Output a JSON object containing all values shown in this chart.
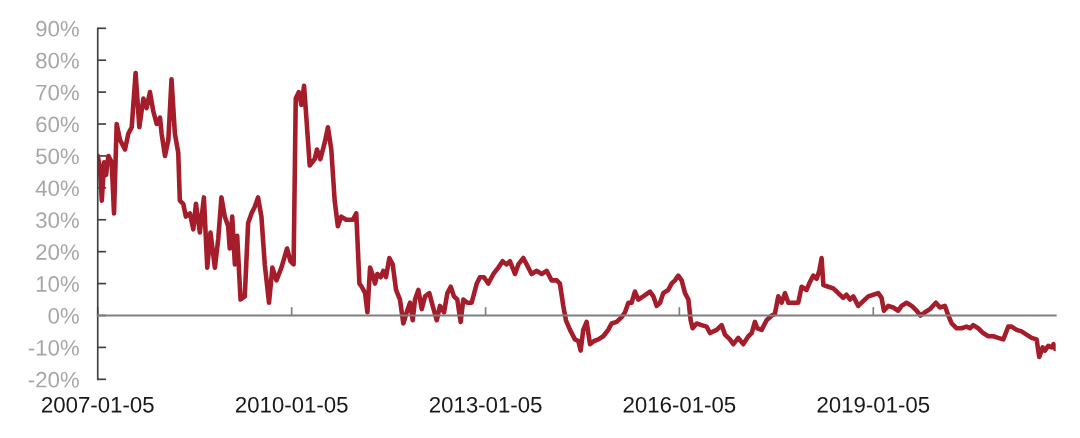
{
  "chart_data": {
    "type": "line",
    "x": [
      "2007-01-05",
      "2007-01-18",
      "2007-01-28",
      "2007-02-10",
      "2007-02-21",
      "2007-03-06",
      "2007-03-25",
      "2007-04-07",
      "2007-04-22",
      "2007-05-11",
      "2007-06-08",
      "2007-06-27",
      "2007-07-16",
      "2007-08-07",
      "2007-08-28",
      "2007-09-20",
      "2007-10-08",
      "2007-10-27",
      "2007-11-15",
      "2007-12-04",
      "2007-12-23",
      "2008-01-01",
      "2008-01-20",
      "2008-02-08",
      "2008-02-26",
      "2008-03-16",
      "2008-04-04",
      "2008-04-13",
      "2008-05-02",
      "2008-05-17",
      "2008-06-09",
      "2008-06-28",
      "2008-07-13",
      "2008-08-04",
      "2008-08-27",
      "2008-09-15",
      "2008-10-03",
      "2008-10-28",
      "2008-11-16",
      "2008-12-04",
      "2008-12-23",
      "2009-01-11",
      "2009-01-20",
      "2009-02-03",
      "2009-02-18",
      "2009-03-03",
      "2009-03-22",
      "2009-04-15",
      "2009-05-04",
      "2009-05-23",
      "2009-06-10",
      "2009-06-29",
      "2009-07-18",
      "2009-08-06",
      "2009-08-30",
      "2009-09-18",
      "2009-10-11",
      "2009-11-08",
      "2009-12-10",
      "2009-12-29",
      "2010-01-16",
      "2010-01-28",
      "2010-02-14",
      "2010-03-01",
      "2010-03-16",
      "2010-03-29",
      "2010-04-17",
      "2010-05-15",
      "2010-05-28",
      "2010-06-16",
      "2010-07-10",
      "2010-07-29",
      "2010-08-17",
      "2010-09-05",
      "2010-09-23",
      "2010-10-12",
      "2010-11-09",
      "2010-12-17",
      "2011-01-05",
      "2011-01-23",
      "2011-02-05",
      "2011-02-24",
      "2011-03-09",
      "2011-03-24",
      "2011-04-06",
      "2011-04-21",
      "2011-05-04",
      "2011-05-23",
      "2011-06-07",
      "2011-06-22",
      "2011-07-11",
      "2011-07-30",
      "2011-08-18",
      "2011-09-09",
      "2011-09-28",
      "2011-10-17",
      "2011-11-05",
      "2011-11-20",
      "2011-12-03",
      "2011-12-22",
      "2012-01-10",
      "2012-01-29",
      "2012-02-22",
      "2012-03-12",
      "2012-04-04",
      "2012-04-22",
      "2012-05-15",
      "2012-06-03",
      "2012-06-22",
      "2012-07-10",
      "2012-07-29",
      "2012-08-17",
      "2012-09-01",
      "2012-09-24",
      "2012-10-18",
      "2012-11-16",
      "2012-12-04",
      "2012-12-27",
      "2013-01-20",
      "2013-02-18",
      "2013-03-18",
      "2013-04-11",
      "2013-05-04",
      "2013-05-23",
      "2013-06-20",
      "2013-07-09",
      "2013-08-06",
      "2013-08-25",
      "2013-09-22",
      "2013-10-21",
      "2013-11-18",
      "2013-12-16",
      "2014-01-13",
      "2014-02-11",
      "2014-03-01",
      "2014-03-20",
      "2014-04-04",
      "2014-04-27",
      "2014-05-25",
      "2014-06-13",
      "2014-06-26",
      "2014-07-11",
      "2014-07-30",
      "2014-08-18",
      "2014-09-10",
      "2014-10-04",
      "2014-11-01",
      "2014-11-29",
      "2014-12-18",
      "2015-01-16",
      "2015-02-13",
      "2015-03-04",
      "2015-03-23",
      "2015-04-10",
      "2015-04-29",
      "2015-05-18",
      "2015-06-15",
      "2015-07-23",
      "2015-08-11",
      "2015-08-30",
      "2015-09-18",
      "2015-10-06",
      "2015-11-03",
      "2015-11-22",
      "2015-12-11",
      "2015-12-30",
      "2016-01-18",
      "2016-02-06",
      "2016-02-25",
      "2016-03-09",
      "2016-03-20",
      "2016-04-12",
      "2016-05-10",
      "2016-06-07",
      "2016-06-26",
      "2016-08-03",
      "2016-08-31",
      "2016-09-19",
      "2016-10-17",
      "2016-11-05",
      "2016-12-03",
      "2016-12-31",
      "2017-01-29",
      "2017-02-17",
      "2017-03-07",
      "2017-03-20",
      "2017-04-14",
      "2017-05-12",
      "2017-06-10",
      "2017-06-28",
      "2017-07-17",
      "2017-08-05",
      "2017-08-24",
      "2017-09-12",
      "2017-11-07",
      "2017-11-26",
      "2017-12-24",
      "2018-01-12",
      "2018-01-31",
      "2018-02-19",
      "2018-03-06",
      "2018-03-19",
      "2018-03-29",
      "2018-04-26",
      "2018-05-24",
      "2018-06-21",
      "2018-07-19",
      "2018-08-07",
      "2018-08-26",
      "2018-09-14",
      "2018-10-12",
      "2018-11-09",
      "2018-12-08",
      "2019-01-05",
      "2019-02-02",
      "2019-02-21",
      "2019-03-06",
      "2019-03-31",
      "2019-04-28",
      "2019-05-26",
      "2019-06-14",
      "2019-07-12",
      "2019-08-10",
      "2019-09-07",
      "2019-09-29",
      "2019-10-24",
      "2019-11-21",
      "2019-12-25",
      "2020-01-17",
      "2020-02-14",
      "2020-03-04",
      "2020-03-23",
      "2020-04-20",
      "2020-05-18",
      "2020-06-15",
      "2020-07-04",
      "2020-07-23",
      "2020-08-20",
      "2020-09-17",
      "2020-10-16",
      "2020-11-13",
      "2020-12-11",
      "2021-01-09",
      "2021-02-06",
      "2021-02-25",
      "2021-03-25",
      "2021-04-22",
      "2021-05-20",
      "2021-06-18",
      "2021-07-16",
      "2021-07-31",
      "2021-08-19",
      "2021-09-01",
      "2021-09-20",
      "2021-10-09",
      "2021-10-20",
      "2021-10-30"
    ],
    "series": [
      {
        "color": "#a51d2b",
        "values": [
          50,
          46,
          36,
          48,
          44,
          50,
          48,
          32,
          60,
          55,
          52,
          57,
          59,
          76,
          59,
          68,
          65,
          70,
          64,
          60,
          62,
          57,
          50,
          55,
          74,
          57,
          51,
          36,
          35,
          31,
          32,
          27,
          35,
          26,
          37,
          15,
          26,
          15,
          24,
          37,
          31,
          28,
          21,
          31,
          16,
          25,
          5,
          6,
          29,
          32,
          34,
          37,
          31,
          16,
          4,
          15,
          11,
          15,
          21,
          17,
          16,
          68,
          70,
          66,
          72,
          62,
          47,
          49,
          52,
          49,
          54,
          59,
          52,
          36,
          28,
          31,
          30,
          30,
          32,
          10,
          9,
          7,
          1,
          15,
          13,
          10,
          13,
          12,
          14,
          12,
          18,
          16,
          8,
          5,
          -2.5,
          1,
          4,
          -1.5,
          5,
          8,
          2,
          6,
          7,
          3,
          -1.5,
          3,
          1,
          7,
          9,
          6,
          5,
          -2,
          5,
          4,
          4,
          10,
          12,
          12,
          10,
          13,
          15,
          17,
          16,
          17,
          13,
          16,
          18,
          16,
          13,
          14,
          13,
          14,
          11,
          11,
          10,
          3,
          -1.5,
          -4.5,
          -7.5,
          -8,
          -11,
          -4.5,
          -2,
          -9,
          -8,
          -7.5,
          -6.5,
          -4.5,
          -2.5,
          -2,
          -0.5,
          1,
          4,
          4,
          7.5,
          5,
          6,
          7.5,
          6,
          3,
          4,
          7,
          8,
          10,
          11,
          12.5,
          11,
          7,
          5,
          -1.5,
          -4,
          -2.5,
          -3,
          -3.5,
          -5.5,
          -4.5,
          -3,
          -6,
          -7.5,
          -9,
          -7,
          -9,
          -6.5,
          -5.5,
          -2,
          -4,
          -4.5,
          -1.5,
          0,
          0.5,
          6,
          4,
          7,
          4,
          4,
          9,
          8,
          10.5,
          12.5,
          11.5,
          14,
          18,
          9.5,
          9,
          8.5,
          7,
          5.5,
          6.5,
          5,
          6,
          3,
          4.5,
          6,
          6.5,
          7,
          5.5,
          1.5,
          3,
          2.5,
          1.5,
          3,
          4,
          3,
          1.5,
          0,
          1,
          2,
          4,
          2.5,
          3,
          0,
          -2.5,
          -4,
          -4,
          -3.5,
          -4,
          -3,
          -4,
          -5.5,
          -6.5,
          -6.5,
          -7,
          -7.5,
          -3.5,
          -3.5,
          -4.5,
          -5,
          -6,
          -7,
          -7.5,
          -13,
          -10,
          -11,
          -9.5,
          -10,
          -9,
          -10.5
        ]
      }
    ],
    "xlim": [
      "2007-01-05",
      "2021-11-01"
    ],
    "xticks": [
      "2007-01-05",
      "2010-01-05",
      "2013-01-05",
      "2016-01-05",
      "2019-01-05"
    ],
    "ylim": [
      -20,
      90
    ],
    "yticks": [
      {
        "value": -20,
        "label": "-20%"
      },
      {
        "value": -10,
        "label": "-10%"
      },
      {
        "value": 0,
        "label": "0%"
      },
      {
        "value": 10,
        "label": "10%"
      },
      {
        "value": 20,
        "label": "20%"
      },
      {
        "value": 30,
        "label": "30%"
      },
      {
        "value": 40,
        "label": "40%"
      },
      {
        "value": 50,
        "label": "50%"
      },
      {
        "value": 60,
        "label": "60%"
      },
      {
        "value": 70,
        "label": "70%"
      },
      {
        "value": 80,
        "label": "80%"
      },
      {
        "value": 90,
        "label": "90%"
      }
    ]
  }
}
